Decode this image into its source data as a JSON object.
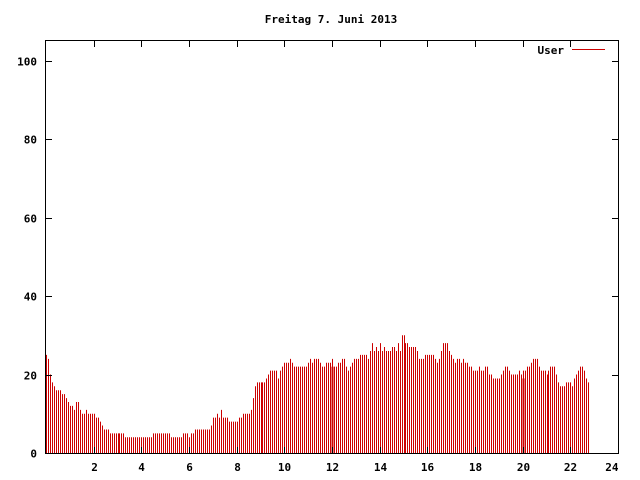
{
  "chart_data": {
    "type": "bar",
    "title": "Freitag 7. Juni 2013",
    "xlabel": "",
    "ylabel": "",
    "xlim": [
      0,
      24
    ],
    "ylim": [
      0,
      105
    ],
    "xticks": [
      2,
      4,
      6,
      8,
      10,
      12,
      14,
      16,
      18,
      20,
      22,
      24
    ],
    "yticks": [
      0,
      20,
      40,
      60,
      80,
      100
    ],
    "grid": false,
    "legend_position": "top-right",
    "series": [
      {
        "name": "User",
        "color": "#cc0000",
        "interval_minutes": 5,
        "values": [
          25,
          24,
          20,
          18,
          17,
          16,
          16,
          16,
          15,
          15,
          14,
          13,
          12,
          12,
          11,
          13,
          13,
          11,
          10,
          10,
          11,
          10,
          10,
          10,
          10,
          9,
          9,
          8,
          7,
          6,
          6,
          6,
          5,
          5,
          5,
          5,
          5,
          5,
          5,
          5,
          4,
          4,
          4,
          4,
          4,
          4,
          4,
          4,
          4,
          4,
          4,
          4,
          4,
          4,
          5,
          5,
          5,
          5,
          5,
          5,
          5,
          5,
          5,
          4,
          4,
          4,
          4,
          4,
          4,
          5,
          5,
          5,
          4,
          5,
          5,
          6,
          6,
          6,
          6,
          6,
          6,
          6,
          6,
          7,
          9,
          9,
          10,
          9,
          11,
          9,
          9,
          9,
          8,
          8,
          8,
          8,
          8,
          9,
          9,
          10,
          10,
          10,
          10,
          11,
          14,
          17,
          18,
          18,
          18,
          18,
          18,
          19,
          20,
          21,
          21,
          21,
          21,
          19,
          21,
          22,
          23,
          23,
          23,
          24,
          23,
          22,
          22,
          22,
          22,
          22,
          22,
          22,
          23,
          24,
          23,
          24,
          24,
          24,
          23,
          22,
          22,
          23,
          23,
          23,
          24,
          22,
          22,
          23,
          23,
          24,
          24,
          22,
          21,
          22,
          23,
          24,
          24,
          24,
          25,
          25,
          25,
          25,
          24,
          26,
          28,
          26,
          27,
          26,
          28,
          26,
          27,
          26,
          26,
          26,
          27,
          27,
          26,
          28,
          26,
          30,
          30,
          28,
          28,
          27,
          27,
          27,
          27,
          26,
          24,
          24,
          24,
          25,
          25,
          25,
          25,
          25,
          24,
          23,
          24,
          26,
          28,
          28,
          28,
          26,
          25,
          24,
          23,
          24,
          24,
          23,
          24,
          23,
          23,
          22,
          22,
          21,
          21,
          21,
          22,
          21,
          21,
          22,
          22,
          20,
          20,
          19,
          19,
          19,
          19,
          20,
          21,
          22,
          22,
          21,
          20,
          20,
          20,
          20,
          21,
          20,
          21,
          21,
          22,
          22,
          23,
          24,
          24,
          24,
          22,
          21,
          21,
          21,
          20,
          21,
          22,
          22,
          22,
          20,
          18,
          17,
          17,
          17,
          18,
          18,
          18,
          17,
          19,
          20,
          21,
          22,
          22,
          21,
          19,
          18
        ],
        "spikes": [
          {
            "x": 12.0,
            "value": 22
          },
          {
            "x": 20.0,
            "value": 19
          }
        ]
      }
    ]
  }
}
